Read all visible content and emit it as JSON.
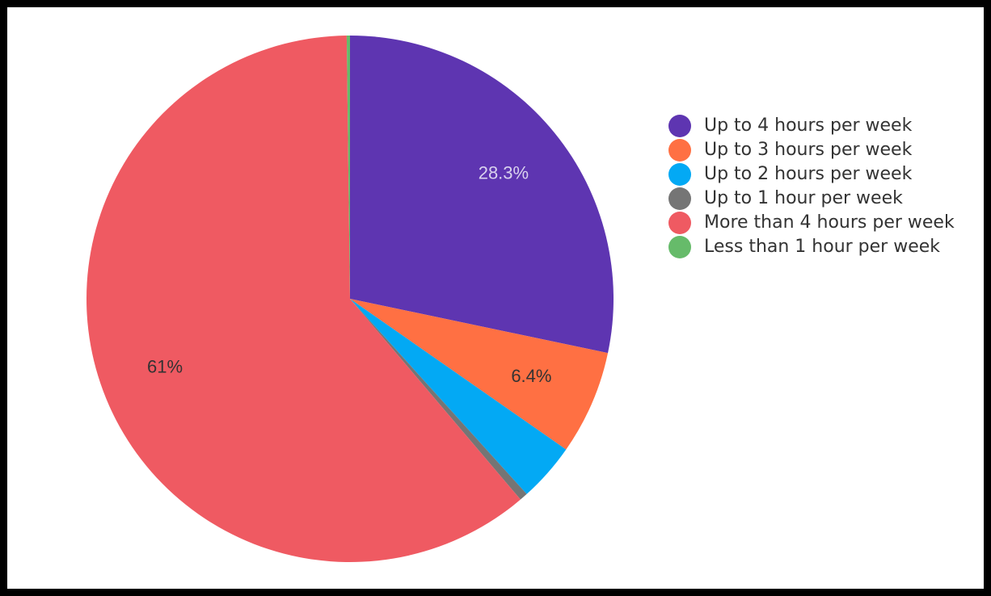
{
  "chart_data": {
    "type": "pie",
    "title": "",
    "legend_position": "right",
    "start_angle_deg": -90,
    "slices": [
      {
        "name": "Up to 4 hours per week",
        "value": 28.3,
        "label": "28.3%",
        "color": "#5e35b1",
        "label_color": "#d9d2ee"
      },
      {
        "name": "Up to 3 hours per week",
        "value": 6.4,
        "label": "6.4%",
        "color": "#ff7043",
        "label_color": "#333333"
      },
      {
        "name": "Up to 2 hours per week",
        "value": 3.6,
        "label": "",
        "color": "#03a9f4",
        "label_color": "#333333"
      },
      {
        "name": "Up to 1 hour per week",
        "value": 0.5,
        "label": "",
        "color": "#757575",
        "label_color": "#333333"
      },
      {
        "name": "More than 4 hours per week",
        "value": 61,
        "label": "61%",
        "color": "#ef5a62",
        "label_color": "#333333"
      },
      {
        "name": "Less than 1 hour per week",
        "value": 0.2,
        "label": "",
        "color": "#66bb6a",
        "label_color": "#333333"
      }
    ]
  },
  "legend": {
    "items": [
      {
        "label": "Up to 4 hours per week",
        "color": "#5e35b1"
      },
      {
        "label": "Up to 3 hours per week",
        "color": "#ff7043"
      },
      {
        "label": "Up to 2 hours per week",
        "color": "#03a9f4"
      },
      {
        "label": "Up to 1 hour per week",
        "color": "#757575"
      },
      {
        "label": "More than 4 hours per week",
        "color": "#ef5a62"
      },
      {
        "label": "Less than 1 hour per week",
        "color": "#66bb6a"
      }
    ]
  }
}
